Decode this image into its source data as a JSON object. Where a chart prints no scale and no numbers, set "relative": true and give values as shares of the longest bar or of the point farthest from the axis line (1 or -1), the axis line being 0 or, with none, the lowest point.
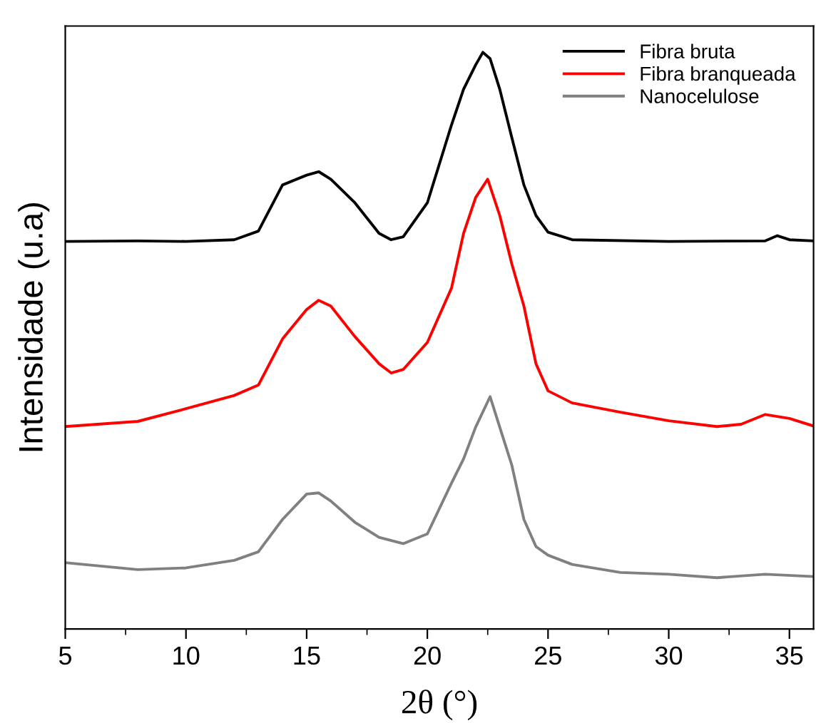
{
  "chart_data": {
    "type": "line",
    "relative": true,
    "xlabel": "2θ (°)",
    "ylabel": "Intensidade (u.a)",
    "xlim": [
      5,
      36
    ],
    "xticks": [
      5,
      10,
      15,
      20,
      25,
      30,
      35
    ],
    "tick_labels": "x",
    "grid": false,
    "legend": "top right",
    "series": [
      {
        "name": "Fibra bruta",
        "color": "#000000",
        "x": [
          5,
          8,
          10,
          12,
          13,
          14,
          15,
          15.5,
          16,
          17,
          18,
          18.5,
          19,
          20,
          21,
          21.5,
          22,
          22.3,
          22.6,
          23,
          23.5,
          24,
          24.5,
          25,
          26,
          30,
          34,
          34.5,
          35,
          36
        ],
        "values": [
          0.672,
          0.673,
          0.672,
          0.675,
          0.69,
          0.77,
          0.787,
          0.793,
          0.78,
          0.739,
          0.686,
          0.675,
          0.68,
          0.739,
          0.874,
          0.936,
          0.978,
          1.0,
          0.989,
          0.936,
          0.852,
          0.77,
          0.717,
          0.688,
          0.675,
          0.672,
          0.673,
          0.682,
          0.675,
          0.673
        ]
      },
      {
        "name": "Fibra branqueada",
        "color": "#ff0000",
        "x": [
          5,
          8,
          10,
          12,
          13,
          14,
          15,
          15.5,
          16,
          17,
          18,
          18.5,
          19,
          20,
          21,
          21.5,
          22,
          22.5,
          23,
          23.5,
          24,
          24.5,
          25,
          26,
          28,
          30,
          32,
          33,
          34,
          35,
          36
        ],
        "values": [
          0.351,
          0.36,
          0.382,
          0.405,
          0.423,
          0.503,
          0.554,
          0.57,
          0.56,
          0.507,
          0.46,
          0.444,
          0.45,
          0.497,
          0.591,
          0.686,
          0.748,
          0.78,
          0.717,
          0.633,
          0.56,
          0.46,
          0.413,
          0.392,
          0.376,
          0.361,
          0.351,
          0.355,
          0.372,
          0.365,
          0.352
        ]
      },
      {
        "name": "Nanocelulose",
        "color": "#808080",
        "x": [
          5,
          8,
          10,
          12,
          13,
          14,
          15,
          15.5,
          16,
          17,
          18,
          19,
          20,
          21,
          21.5,
          22,
          22.6,
          23,
          23.5,
          24,
          24.5,
          25,
          26,
          28,
          30,
          32,
          34,
          36
        ],
        "values": [
          0.115,
          0.103,
          0.106,
          0.119,
          0.134,
          0.19,
          0.234,
          0.236,
          0.222,
          0.185,
          0.159,
          0.148,
          0.165,
          0.253,
          0.295,
          0.35,
          0.403,
          0.35,
          0.284,
          0.19,
          0.143,
          0.128,
          0.112,
          0.098,
          0.095,
          0.089,
          0.095,
          0.091
        ]
      }
    ]
  }
}
